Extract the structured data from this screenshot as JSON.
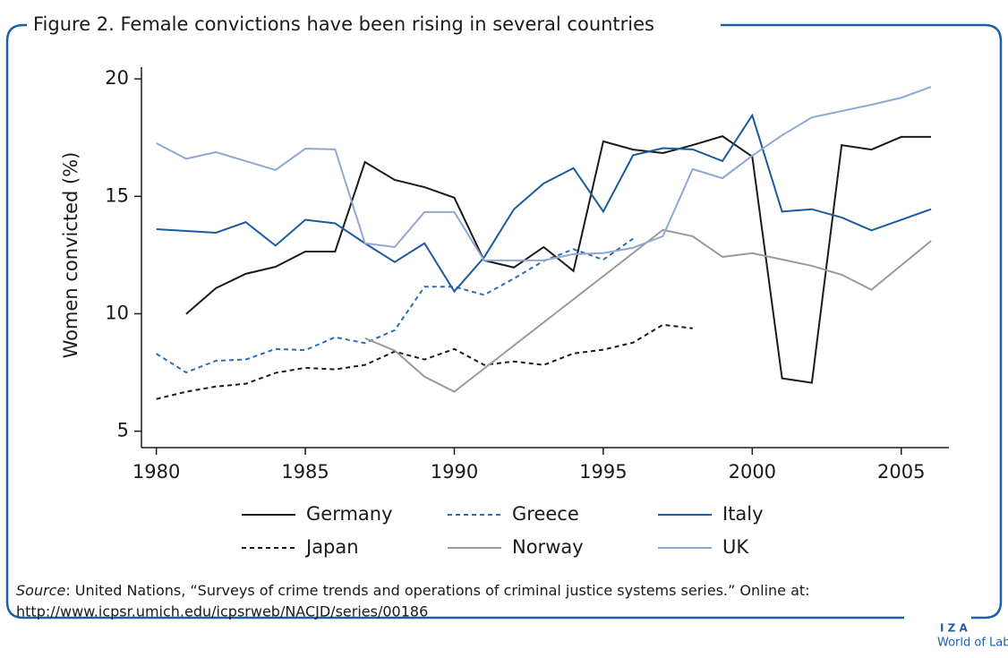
{
  "chart_data": {
    "type": "line",
    "title": "Figure 2. Female convictions have been rising in several countries",
    "ylabel": "Women convicted (%)",
    "xlim": [
      1979.5,
      2006.6
    ],
    "xticks": [
      1980,
      1985,
      1990,
      1995,
      2000,
      2005
    ],
    "ylim": [
      4.3,
      20.5
    ],
    "yticks": [
      5,
      10,
      15,
      20
    ],
    "series": [
      {
        "name": "Germany",
        "color": "#1a1a1a",
        "dash": false,
        "x": [
          1981,
          1982,
          1983,
          1984,
          1985,
          1986,
          1987,
          1988,
          1989,
          1990,
          1991,
          1992,
          1993,
          1994,
          1995,
          1996,
          1997,
          1998,
          1999,
          2000,
          2001,
          2002,
          2003,
          2004,
          2005,
          2006
        ],
        "values": [
          9.99,
          11.09,
          11.7,
          12.0,
          12.65,
          12.65,
          16.46,
          15.7,
          15.39,
          14.94,
          12.27,
          11.97,
          12.84,
          11.82,
          17.34,
          16.99,
          16.84,
          17.18,
          17.56,
          16.69,
          7.25,
          7.06,
          17.18,
          16.99,
          17.53,
          17.53
        ]
      },
      {
        "name": "Greece",
        "color": "#2a6db5",
        "dash": true,
        "x": [
          1980,
          1981,
          1982,
          1983,
          1984,
          1985,
          1986,
          1987,
          1988,
          1989,
          1990,
          1991,
          1992,
          1993,
          1994,
          1995,
          1996
        ],
        "values": [
          8.3,
          7.5,
          8.0,
          8.05,
          8.5,
          8.45,
          9.0,
          8.75,
          9.3,
          11.15,
          11.15,
          10.8,
          11.5,
          12.25,
          12.75,
          12.3,
          13.2
        ]
      },
      {
        "name": "Italy",
        "color": "#1b5a9c",
        "dash": false,
        "x": [
          1980,
          1982,
          1983,
          1984,
          1985,
          1986,
          1987,
          1988,
          1989,
          1990,
          1991,
          1992,
          1993,
          1994,
          1995,
          1996,
          1997,
          1998,
          1999,
          2000,
          2001,
          2002,
          2003,
          2004,
          2005,
          2006
        ],
        "values": [
          13.6,
          13.45,
          13.9,
          12.9,
          14.0,
          13.85,
          13.0,
          12.2,
          13.0,
          10.95,
          12.4,
          14.45,
          15.55,
          16.2,
          14.35,
          16.75,
          17.05,
          17.0,
          16.5,
          18.45,
          14.35,
          14.45,
          14.1,
          13.55,
          14.0,
          14.45
        ]
      },
      {
        "name": "Japan",
        "color": "#1a1a1a",
        "dash": true,
        "x": [
          1980,
          1981,
          1982,
          1983,
          1984,
          1985,
          1986,
          1987,
          1988,
          1989,
          1990,
          1991,
          1992,
          1993,
          1994,
          1995,
          1996,
          1997,
          1998
        ],
        "values": [
          6.37,
          6.68,
          6.9,
          7.02,
          7.48,
          7.7,
          7.63,
          7.82,
          8.39,
          8.05,
          8.5,
          7.82,
          7.97,
          7.82,
          8.31,
          8.47,
          8.77,
          9.53,
          9.38
        ]
      },
      {
        "name": "Norway",
        "color": "#9a9a9a",
        "dash": false,
        "x": [
          1987,
          1988,
          1989,
          1990,
          1997,
          1998,
          1999,
          2000,
          2001,
          2002,
          2003,
          2004,
          2006
        ],
        "values": [
          8.96,
          8.43,
          7.32,
          6.68,
          13.57,
          13.3,
          12.42,
          12.58,
          12.31,
          12.04,
          11.66,
          11.02,
          13.1
        ]
      },
      {
        "name": "UK",
        "color": "#8ea7d3",
        "dash": false,
        "x": [
          1980,
          1981,
          1982,
          1983,
          1984,
          1985,
          1986,
          1987,
          1988,
          1989,
          1990,
          1991,
          1992,
          1993,
          1994,
          1995,
          1996,
          1997,
          1998,
          1999,
          2000,
          2001,
          2002,
          2003,
          2004,
          2005,
          2006
        ],
        "values": [
          17.26,
          16.6,
          16.88,
          16.5,
          16.12,
          17.03,
          17.0,
          13.0,
          12.84,
          14.33,
          14.33,
          12.27,
          12.27,
          12.27,
          12.54,
          12.58,
          12.81,
          13.3,
          16.16,
          15.77,
          16.73,
          17.6,
          18.36,
          18.63,
          18.9,
          19.2,
          19.66
        ]
      }
    ],
    "source_label": "Source",
    "source_text": ": United Nations, “Surveys of crime trends and operations of criminal justice systems series.” Online at:",
    "source_url": "http://www.icpsr.umich.edu/icpsrweb/NACJD/series/00186",
    "logo_top": "I Z A",
    "logo_bottom": "World of Labor"
  }
}
